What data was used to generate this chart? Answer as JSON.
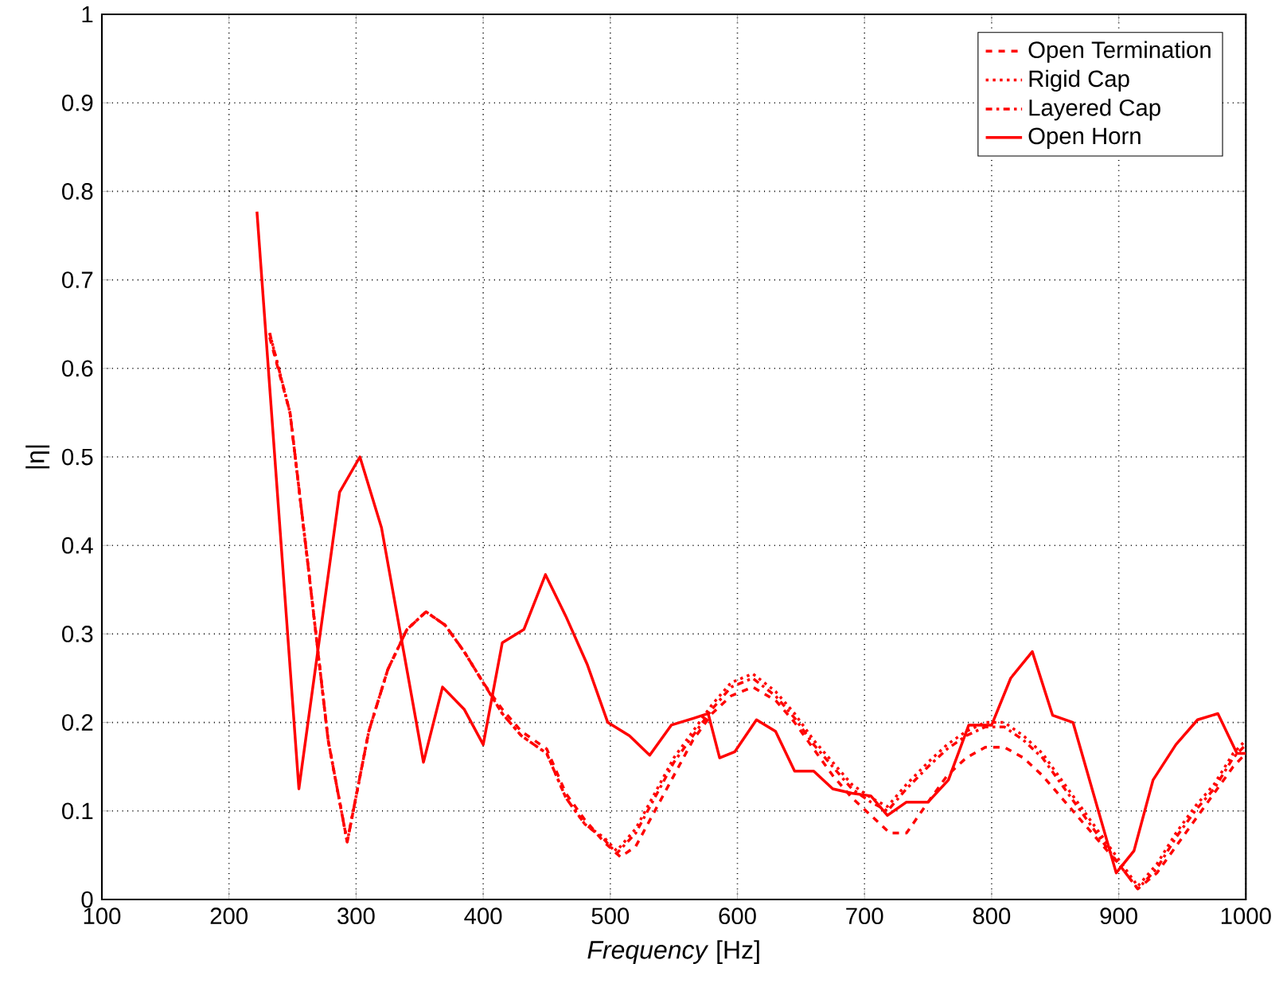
{
  "chart_data": {
    "type": "line",
    "xlabel": "*Frequency* [Hz]",
    "ylabel": "|η|",
    "xlim": [
      100,
      1000
    ],
    "ylim": [
      0,
      1
    ],
    "xticks": [
      100,
      200,
      300,
      400,
      500,
      600,
      700,
      800,
      900,
      1000
    ],
    "yticks": [
      0,
      0.1,
      0.2,
      0.3,
      0.4,
      0.5,
      0.6,
      0.7,
      0.8,
      0.9,
      1
    ],
    "grid": true,
    "legend": "top right",
    "marker": "none",
    "series": [
      {
        "name": "Open Termination",
        "color": "#ff0000",
        "line_style": "dashed",
        "x": [
          232,
          248,
          262,
          278,
          293,
          310,
          325,
          340,
          355,
          370,
          385,
          400,
          415,
          430,
          450,
          465,
          480,
          495,
          508,
          520,
          535,
          550,
          565,
          580,
          595,
          612,
          630,
          645,
          660,
          675,
          690,
          705,
          720,
          733,
          750,
          765,
          780,
          795,
          810,
          825,
          840,
          855,
          870,
          885,
          900,
          915,
          930,
          945,
          960,
          975,
          990,
          1000
        ],
        "values": [
          0.635,
          0.55,
          0.38,
          0.18,
          0.065,
          0.19,
          0.26,
          0.305,
          0.325,
          0.31,
          0.28,
          0.245,
          0.215,
          0.19,
          0.17,
          0.12,
          0.09,
          0.065,
          0.048,
          0.06,
          0.1,
          0.14,
          0.18,
          0.21,
          0.23,
          0.24,
          0.225,
          0.2,
          0.17,
          0.14,
          0.115,
          0.095,
          0.075,
          0.075,
          0.11,
          0.14,
          0.16,
          0.172,
          0.172,
          0.16,
          0.14,
          0.115,
          0.09,
          0.065,
          0.04,
          0.012,
          0.03,
          0.06,
          0.09,
          0.12,
          0.15,
          0.165
        ]
      },
      {
        "name": "Rigid Cap",
        "color": "#ff0000",
        "line_style": "dotted",
        "x": [
          232,
          248,
          262,
          278,
          293,
          310,
          325,
          340,
          355,
          370,
          385,
          400,
          415,
          430,
          450,
          465,
          480,
          495,
          505,
          520,
          535,
          550,
          565,
          580,
          595,
          612,
          630,
          645,
          660,
          675,
          690,
          705,
          718,
          733,
          750,
          765,
          780,
          795,
          810,
          825,
          840,
          855,
          870,
          885,
          900,
          915,
          930,
          945,
          960,
          975,
          990,
          1000
        ],
        "values": [
          0.64,
          0.55,
          0.38,
          0.18,
          0.065,
          0.19,
          0.26,
          0.305,
          0.325,
          0.31,
          0.28,
          0.245,
          0.21,
          0.185,
          0.165,
          0.115,
          0.085,
          0.07,
          0.055,
          0.08,
          0.12,
          0.16,
          0.19,
          0.22,
          0.245,
          0.255,
          0.235,
          0.21,
          0.18,
          0.155,
          0.13,
          0.115,
          0.105,
          0.13,
          0.155,
          0.175,
          0.19,
          0.2,
          0.2,
          0.185,
          0.165,
          0.135,
          0.105,
          0.075,
          0.045,
          0.015,
          0.04,
          0.075,
          0.105,
          0.13,
          0.165,
          0.18
        ]
      },
      {
        "name": "Layered Cap",
        "color": "#ff0000",
        "line_style": "dashdot",
        "x": [
          232,
          248,
          262,
          278,
          293,
          310,
          325,
          340,
          355,
          370,
          385,
          400,
          415,
          430,
          450,
          465,
          480,
          495,
          505,
          520,
          535,
          550,
          565,
          580,
          595,
          612,
          630,
          645,
          660,
          675,
          690,
          705,
          718,
          733,
          750,
          765,
          780,
          795,
          810,
          825,
          840,
          855,
          870,
          885,
          900,
          915,
          930,
          945,
          960,
          975,
          990,
          1000
        ],
        "values": [
          0.64,
          0.55,
          0.38,
          0.18,
          0.065,
          0.19,
          0.26,
          0.305,
          0.325,
          0.31,
          0.28,
          0.245,
          0.21,
          0.185,
          0.165,
          0.115,
          0.085,
          0.068,
          0.052,
          0.075,
          0.115,
          0.155,
          0.185,
          0.215,
          0.24,
          0.25,
          0.23,
          0.205,
          0.175,
          0.15,
          0.125,
          0.11,
          0.1,
          0.125,
          0.15,
          0.17,
          0.185,
          0.195,
          0.195,
          0.18,
          0.16,
          0.13,
          0.1,
          0.07,
          0.04,
          0.012,
          0.035,
          0.07,
          0.1,
          0.125,
          0.16,
          0.175
        ]
      },
      {
        "name": "Open Horn",
        "color": "#ff0000",
        "line_style": "solid",
        "x": [
          222,
          255,
          287,
          303,
          320,
          353,
          368,
          385,
          400,
          415,
          432,
          449,
          465,
          482,
          498,
          515,
          531,
          548,
          566,
          577,
          586,
          598,
          615,
          630,
          645,
          660,
          675,
          690,
          705,
          718,
          733,
          750,
          766,
          782,
          800,
          815,
          832,
          848,
          864,
          898,
          912,
          927,
          945,
          962,
          978,
          993,
          1000
        ],
        "values": [
          0.777,
          0.125,
          0.46,
          0.5,
          0.42,
          0.155,
          0.24,
          0.215,
          0.175,
          0.29,
          0.305,
          0.367,
          0.32,
          0.265,
          0.2,
          0.185,
          0.163,
          0.197,
          0.205,
          0.21,
          0.16,
          0.167,
          0.203,
          0.19,
          0.145,
          0.145,
          0.125,
          0.12,
          0.117,
          0.095,
          0.11,
          0.11,
          0.135,
          0.197,
          0.197,
          0.25,
          0.28,
          0.208,
          0.2,
          0.03,
          0.055,
          0.135,
          0.175,
          0.203,
          0.21,
          0.165,
          0.165
        ]
      }
    ]
  }
}
